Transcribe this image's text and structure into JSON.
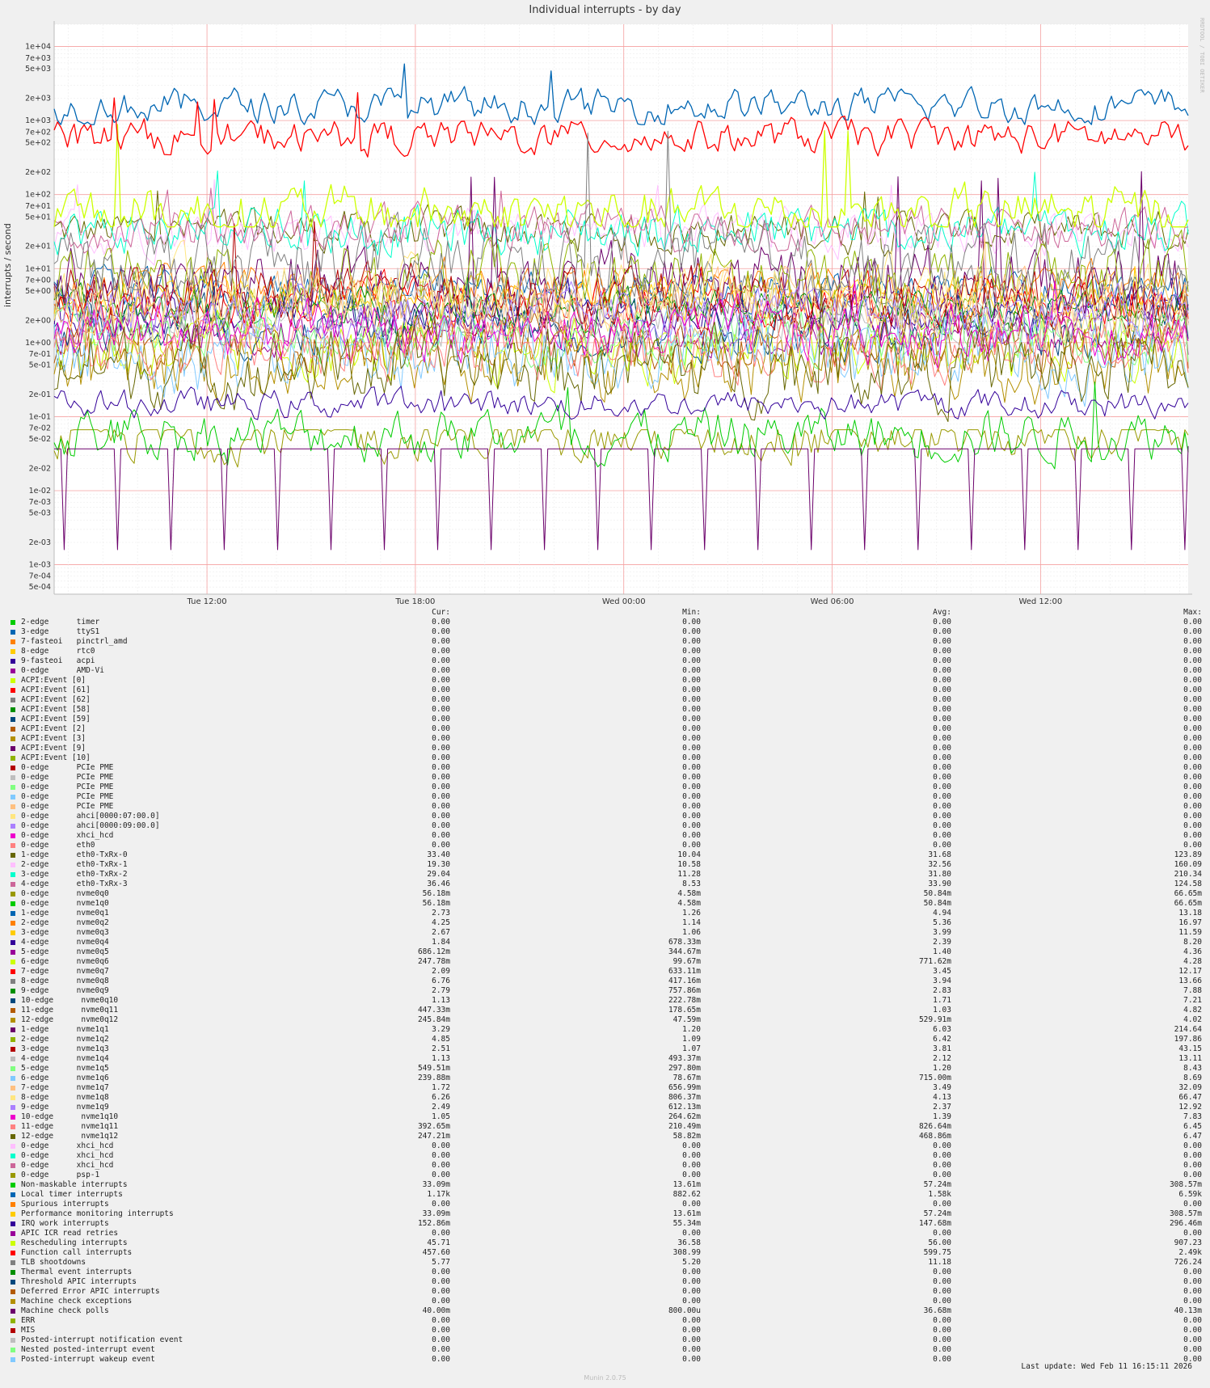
{
  "chart_data": {
    "type": "line",
    "title": "Individual interrupts - by day",
    "ylabel": "interrupts / second",
    "yscale": "log",
    "ylim": [
      0.0004,
      20000
    ],
    "yticks": [
      "1e+04",
      "7e+03",
      "5e+03",
      "2e+03",
      "1e+03",
      "7e+02",
      "5e+02",
      "2e+02",
      "1e+02",
      "7e+01",
      "5e+01",
      "2e+01",
      "1e+01",
      "7e+00",
      "5e+00",
      "2e+00",
      "1e+00",
      "7e-01",
      "5e-01",
      "2e-01",
      "1e-01",
      "7e-02",
      "5e-02",
      "2e-02",
      "1e-02",
      "7e-03",
      "5e-03",
      "2e-03",
      "1e-03",
      "7e-04",
      "5e-04"
    ],
    "xticks": [
      "Tue 12:00",
      "Tue 18:00",
      "Wed 00:00",
      "Wed 06:00",
      "Wed 12:00"
    ],
    "xrange_hours": [
      7.6,
      40.25
    ],
    "xtick_hours": [
      12,
      18,
      24,
      30,
      36
    ],
    "grid": true,
    "legend_placement": "bottom",
    "column_headers": [
      "Cur:",
      "Min:",
      "Avg:",
      "Max:"
    ],
    "series": [
      {
        "name": "2-edge      timer",
        "color": "#00cc00",
        "cur": "0.00",
        "min": "0.00",
        "avg": "0.00",
        "max": "0.00"
      },
      {
        "name": "3-edge      ttyS1",
        "color": "#0066b3",
        "cur": "0.00",
        "min": "0.00",
        "avg": "0.00",
        "max": "0.00"
      },
      {
        "name": "7-fasteoi   pinctrl_amd",
        "color": "#ff8000",
        "cur": "0.00",
        "min": "0.00",
        "avg": "0.00",
        "max": "0.00"
      },
      {
        "name": "8-edge      rtc0",
        "color": "#ffcc00",
        "cur": "0.00",
        "min": "0.00",
        "avg": "0.00",
        "max": "0.00"
      },
      {
        "name": "9-fasteoi   acpi",
        "color": "#330099",
        "cur": "0.00",
        "min": "0.00",
        "avg": "0.00",
        "max": "0.00"
      },
      {
        "name": "0-edge      AMD-Vi",
        "color": "#990099",
        "cur": "0.00",
        "min": "0.00",
        "avg": "0.00",
        "max": "0.00"
      },
      {
        "name": "ACPI:Event [0]",
        "color": "#ccff00",
        "cur": "0.00",
        "min": "0.00",
        "avg": "0.00",
        "max": "0.00"
      },
      {
        "name": "ACPI:Event [61]",
        "color": "#ff0000",
        "cur": "0.00",
        "min": "0.00",
        "avg": "0.00",
        "max": "0.00"
      },
      {
        "name": "ACPI:Event [62]",
        "color": "#808080",
        "cur": "0.00",
        "min": "0.00",
        "avg": "0.00",
        "max": "0.00"
      },
      {
        "name": "ACPI:Event [58]",
        "color": "#008f00",
        "cur": "0.00",
        "min": "0.00",
        "avg": "0.00",
        "max": "0.00"
      },
      {
        "name": "ACPI:Event [59]",
        "color": "#00487d",
        "cur": "0.00",
        "min": "0.00",
        "avg": "0.00",
        "max": "0.00"
      },
      {
        "name": "ACPI:Event [2]",
        "color": "#b35a00",
        "cur": "0.00",
        "min": "0.00",
        "avg": "0.00",
        "max": "0.00"
      },
      {
        "name": "ACPI:Event [3]",
        "color": "#b38f00",
        "cur": "0.00",
        "min": "0.00",
        "avg": "0.00",
        "max": "0.00"
      },
      {
        "name": "ACPI:Event [9]",
        "color": "#6b006b",
        "cur": "0.00",
        "min": "0.00",
        "avg": "0.00",
        "max": "0.00"
      },
      {
        "name": "ACPI:Event [10]",
        "color": "#8fb300",
        "cur": "0.00",
        "min": "0.00",
        "avg": "0.00",
        "max": "0.00"
      },
      {
        "name": "0-edge      PCIe PME",
        "color": "#b30000",
        "cur": "0.00",
        "min": "0.00",
        "avg": "0.00",
        "max": "0.00"
      },
      {
        "name": "0-edge      PCIe PME",
        "color": "#bebebe",
        "cur": "0.00",
        "min": "0.00",
        "avg": "0.00",
        "max": "0.00"
      },
      {
        "name": "0-edge      PCIe PME",
        "color": "#80ff80",
        "cur": "0.00",
        "min": "0.00",
        "avg": "0.00",
        "max": "0.00"
      },
      {
        "name": "0-edge      PCIe PME",
        "color": "#80c9ff",
        "cur": "0.00",
        "min": "0.00",
        "avg": "0.00",
        "max": "0.00"
      },
      {
        "name": "0-edge      PCIe PME",
        "color": "#ffc080",
        "cur": "0.00",
        "min": "0.00",
        "avg": "0.00",
        "max": "0.00"
      },
      {
        "name": "0-edge      ahci[0000:07:00.0]",
        "color": "#ffe680",
        "cur": "0.00",
        "min": "0.00",
        "avg": "0.00",
        "max": "0.00"
      },
      {
        "name": "0-edge      ahci[0000:09:00.0]",
        "color": "#aa80ff",
        "cur": "0.00",
        "min": "0.00",
        "avg": "0.00",
        "max": "0.00"
      },
      {
        "name": "0-edge      xhci_hcd",
        "color": "#ee00cc",
        "cur": "0.00",
        "min": "0.00",
        "avg": "0.00",
        "max": "0.00"
      },
      {
        "name": "0-edge      eth0",
        "color": "#ff8080",
        "cur": "0.00",
        "min": "0.00",
        "avg": "0.00",
        "max": "0.00"
      },
      {
        "name": "1-edge      eth0-TxRx-0",
        "color": "#666600",
        "cur": "33.40",
        "min": "10.04",
        "avg": "31.68",
        "max": "123.89"
      },
      {
        "name": "2-edge      eth0-TxRx-1",
        "color": "#ffbfff",
        "cur": "19.30",
        "min": "10.58",
        "avg": "32.56",
        "max": "160.09"
      },
      {
        "name": "3-edge      eth0-TxRx-2",
        "color": "#00ffcc",
        "cur": "29.04",
        "min": "11.28",
        "avg": "31.80",
        "max": "210.34"
      },
      {
        "name": "4-edge      eth0-TxRx-3",
        "color": "#cc6699",
        "cur": "36.46",
        "min": "8.53",
        "avg": "33.90",
        "max": "124.58"
      },
      {
        "name": "0-edge      nvme0q0",
        "color": "#999900",
        "cur": "56.18m",
        "min": "4.58m",
        "avg": "50.84m",
        "max": "66.65m"
      },
      {
        "name": "0-edge      nvme1q0",
        "color": "#00cc00",
        "cur": "56.18m",
        "min": "4.58m",
        "avg": "50.84m",
        "max": "66.65m"
      },
      {
        "name": "1-edge      nvme0q1",
        "color": "#0066b3",
        "cur": "2.73",
        "min": "1.26",
        "avg": "4.94",
        "max": "13.18"
      },
      {
        "name": "2-edge      nvme0q2",
        "color": "#ff8000",
        "cur": "4.25",
        "min": "1.14",
        "avg": "5.36",
        "max": "16.97"
      },
      {
        "name": "3-edge      nvme0q3",
        "color": "#ffcc00",
        "cur": "2.67",
        "min": "1.06",
        "avg": "3.99",
        "max": "11.59"
      },
      {
        "name": "4-edge      nvme0q4",
        "color": "#330099",
        "cur": "1.84",
        "min": "678.33m",
        "avg": "2.39",
        "max": "8.20"
      },
      {
        "name": "5-edge      nvme0q5",
        "color": "#990099",
        "cur": "686.12m",
        "min": "344.67m",
        "avg": "1.40",
        "max": "4.36"
      },
      {
        "name": "6-edge      nvme0q6",
        "color": "#ccff00",
        "cur": "247.78m",
        "min": "99.67m",
        "avg": "771.62m",
        "max": "4.28"
      },
      {
        "name": "7-edge      nvme0q7",
        "color": "#ff0000",
        "cur": "2.09",
        "min": "633.11m",
        "avg": "3.45",
        "max": "12.17"
      },
      {
        "name": "8-edge      nvme0q8",
        "color": "#808080",
        "cur": "6.76",
        "min": "417.16m",
        "avg": "3.94",
        "max": "13.66"
      },
      {
        "name": "9-edge      nvme0q9",
        "color": "#008f00",
        "cur": "2.79",
        "min": "757.86m",
        "avg": "2.83",
        "max": "7.88"
      },
      {
        "name": "10-edge      nvme0q10",
        "color": "#00487d",
        "cur": "1.13",
        "min": "222.78m",
        "avg": "1.71",
        "max": "7.21"
      },
      {
        "name": "11-edge      nvme0q11",
        "color": "#b35a00",
        "cur": "447.33m",
        "min": "178.65m",
        "avg": "1.03",
        "max": "4.82"
      },
      {
        "name": "12-edge      nvme0q12",
        "color": "#b38f00",
        "cur": "245.84m",
        "min": "47.59m",
        "avg": "529.91m",
        "max": "4.02"
      },
      {
        "name": "1-edge      nvme1q1",
        "color": "#6b006b",
        "cur": "3.29",
        "min": "1.20",
        "avg": "6.03",
        "max": "214.64"
      },
      {
        "name": "2-edge      nvme1q2",
        "color": "#8fb300",
        "cur": "4.85",
        "min": "1.09",
        "avg": "6.42",
        "max": "197.86"
      },
      {
        "name": "3-edge      nvme1q3",
        "color": "#b30000",
        "cur": "2.51",
        "min": "1.07",
        "avg": "3.81",
        "max": "43.15"
      },
      {
        "name": "4-edge      nvme1q4",
        "color": "#bebebe",
        "cur": "1.13",
        "min": "493.37m",
        "avg": "2.12",
        "max": "13.11"
      },
      {
        "name": "5-edge      nvme1q5",
        "color": "#80ff80",
        "cur": "549.51m",
        "min": "297.80m",
        "avg": "1.20",
        "max": "8.43"
      },
      {
        "name": "6-edge      nvme1q6",
        "color": "#80c9ff",
        "cur": "239.88m",
        "min": "78.67m",
        "avg": "715.00m",
        "max": "8.69"
      },
      {
        "name": "7-edge      nvme1q7",
        "color": "#ffc080",
        "cur": "1.72",
        "min": "656.99m",
        "avg": "3.49",
        "max": "32.09"
      },
      {
        "name": "8-edge      nvme1q8",
        "color": "#ffe680",
        "cur": "6.26",
        "min": "806.37m",
        "avg": "4.13",
        "max": "66.47"
      },
      {
        "name": "9-edge      nvme1q9",
        "color": "#aa80ff",
        "cur": "2.49",
        "min": "612.13m",
        "avg": "2.37",
        "max": "12.92"
      },
      {
        "name": "10-edge      nvme1q10",
        "color": "#ee00cc",
        "cur": "1.05",
        "min": "264.62m",
        "avg": "1.39",
        "max": "7.83"
      },
      {
        "name": "11-edge      nvme1q11",
        "color": "#ff8080",
        "cur": "392.65m",
        "min": "210.49m",
        "avg": "826.64m",
        "max": "6.45"
      },
      {
        "name": "12-edge      nvme1q12",
        "color": "#666600",
        "cur": "247.21m",
        "min": "58.82m",
        "avg": "468.86m",
        "max": "6.47"
      },
      {
        "name": "0-edge      xhci_hcd",
        "color": "#ffbfff",
        "cur": "0.00",
        "min": "0.00",
        "avg": "0.00",
        "max": "0.00"
      },
      {
        "name": "0-edge      xhci_hcd",
        "color": "#00ffcc",
        "cur": "0.00",
        "min": "0.00",
        "avg": "0.00",
        "max": "0.00"
      },
      {
        "name": "0-edge      xhci_hcd",
        "color": "#cc6699",
        "cur": "0.00",
        "min": "0.00",
        "avg": "0.00",
        "max": "0.00"
      },
      {
        "name": "0-edge      psp-1",
        "color": "#999900",
        "cur": "0.00",
        "min": "0.00",
        "avg": "0.00",
        "max": "0.00"
      },
      {
        "name": "Non-maskable interrupts",
        "color": "#00cc00",
        "cur": "33.09m",
        "min": "13.61m",
        "avg": "57.24m",
        "max": "308.57m"
      },
      {
        "name": "Local timer interrupts",
        "color": "#0066b3",
        "cur": "1.17k",
        "min": "882.62",
        "avg": "1.58k",
        "max": "6.59k"
      },
      {
        "name": "Spurious interrupts",
        "color": "#ff8000",
        "cur": "0.00",
        "min": "0.00",
        "avg": "0.00",
        "max": "0.00"
      },
      {
        "name": "Performance monitoring interrupts",
        "color": "#ffcc00",
        "cur": "33.09m",
        "min": "13.61m",
        "avg": "57.24m",
        "max": "308.57m"
      },
      {
        "name": "IRQ work interrupts",
        "color": "#330099",
        "cur": "152.86m",
        "min": "55.34m",
        "avg": "147.68m",
        "max": "296.46m"
      },
      {
        "name": "APIC ICR read retries",
        "color": "#990099",
        "cur": "0.00",
        "min": "0.00",
        "avg": "0.00",
        "max": "0.00"
      },
      {
        "name": "Rescheduling interrupts",
        "color": "#ccff00",
        "cur": "45.71",
        "min": "36.58",
        "avg": "56.00",
        "max": "907.23"
      },
      {
        "name": "Function call interrupts",
        "color": "#ff0000",
        "cur": "457.60",
        "min": "308.99",
        "avg": "599.75",
        "max": "2.49k"
      },
      {
        "name": "TLB shootdowns",
        "color": "#808080",
        "cur": "5.77",
        "min": "5.20",
        "avg": "11.18",
        "max": "726.24"
      },
      {
        "name": "Thermal event interrupts",
        "color": "#008f00",
        "cur": "0.00",
        "min": "0.00",
        "avg": "0.00",
        "max": "0.00"
      },
      {
        "name": "Threshold APIC interrupts",
        "color": "#00487d",
        "cur": "0.00",
        "min": "0.00",
        "avg": "0.00",
        "max": "0.00"
      },
      {
        "name": "Deferred Error APIC interrupts",
        "color": "#b35a00",
        "cur": "0.00",
        "min": "0.00",
        "avg": "0.00",
        "max": "0.00"
      },
      {
        "name": "Machine check exceptions",
        "color": "#b38f00",
        "cur": "0.00",
        "min": "0.00",
        "avg": "0.00",
        "max": "0.00"
      },
      {
        "name": "Machine check polls",
        "color": "#6b006b",
        "cur": "40.00m",
        "min": "800.00u",
        "avg": "36.68m",
        "max": "40.13m"
      },
      {
        "name": "ERR",
        "color": "#8fb300",
        "cur": "0.00",
        "min": "0.00",
        "avg": "0.00",
        "max": "0.00"
      },
      {
        "name": "MIS",
        "color": "#b30000",
        "cur": "0.00",
        "min": "0.00",
        "avg": "0.00",
        "max": "0.00"
      },
      {
        "name": "Posted-interrupt notification event",
        "color": "#bebebe",
        "cur": "0.00",
        "min": "0.00",
        "avg": "0.00",
        "max": "0.00"
      },
      {
        "name": "Nested posted-interrupt event",
        "color": "#80ff80",
        "cur": "0.00",
        "min": "0.00",
        "avg": "0.00",
        "max": "0.00"
      },
      {
        "name": "Posted-interrupt wakeup event",
        "color": "#80c9ff",
        "cur": "0.00",
        "min": "0.00",
        "avg": "0.00",
        "max": "0.00"
      }
    ]
  },
  "footer": {
    "last_update": "Last update: Wed Feb 11 16:15:11 2026",
    "version": "Munin 2.0.75"
  },
  "watermark": "RRDTOOL / TOBI OETIKER"
}
